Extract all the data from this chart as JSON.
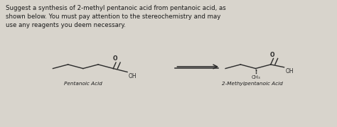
{
  "bg_color": "#d8d4cc",
  "text_color": "#1a1a1a",
  "title_text": "Suggest a synthesis of 2-methyl pentanoic acid from pentanoic acid, as\nshown below. You must pay attention to the stereochemistry and may\nuse any reagents you deem necessary.",
  "label_left": "Pentanoic Acid",
  "label_right": "2-Methylpentanoic Acid",
  "figsize": [
    4.74,
    1.79
  ],
  "dpi": 100
}
